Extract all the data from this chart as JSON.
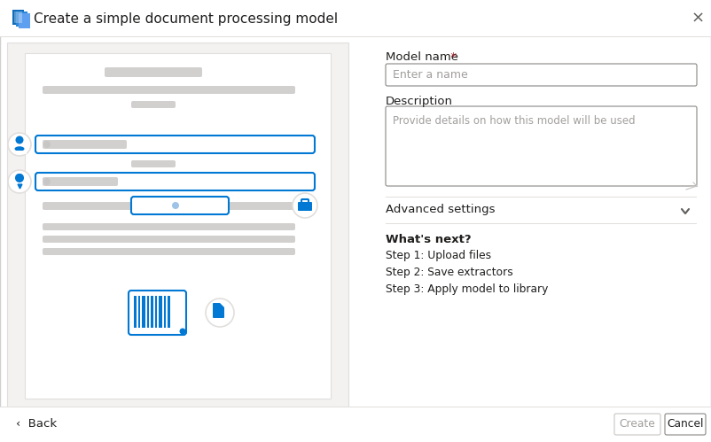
{
  "title": "Create a simple document processing model",
  "bg_color": "#ffffff",
  "outer_border": "#d2d0ce",
  "title_color": "#201f1e",
  "title_fontsize": 11,
  "model_name_label": "Model name",
  "model_name_required": " *",
  "model_name_placeholder": "Enter a name",
  "description_label": "Description",
  "description_placeholder": "Provide details on how this model will be used",
  "advanced_label": "Advanced settings",
  "whats_next_label": "What's next?",
  "steps": [
    "Step 1: Upload files",
    "Step 2: Save extractors",
    "Step 3: Apply model to library"
  ],
  "create_btn": "Create",
  "cancel_btn": "Cancel",
  "back_label": "‹  Back",
  "close_x": "×",
  "blue_color": "#0078d4",
  "gray_bar_color": "#d2d0ce",
  "light_gray": "#e8e8e8",
  "medium_gray": "#c8c6c4",
  "text_dark": "#201f1e",
  "text_gray": "#605e5c",
  "text_light": "#a19f9d",
  "border_color": "#e1dfdd",
  "input_border": "#8a8886",
  "red_star": "#a4262c",
  "left_outer_bg": "#f3f2f1",
  "left_inner_bg": "#ffffff",
  "divider_color": "#e1dfdd"
}
